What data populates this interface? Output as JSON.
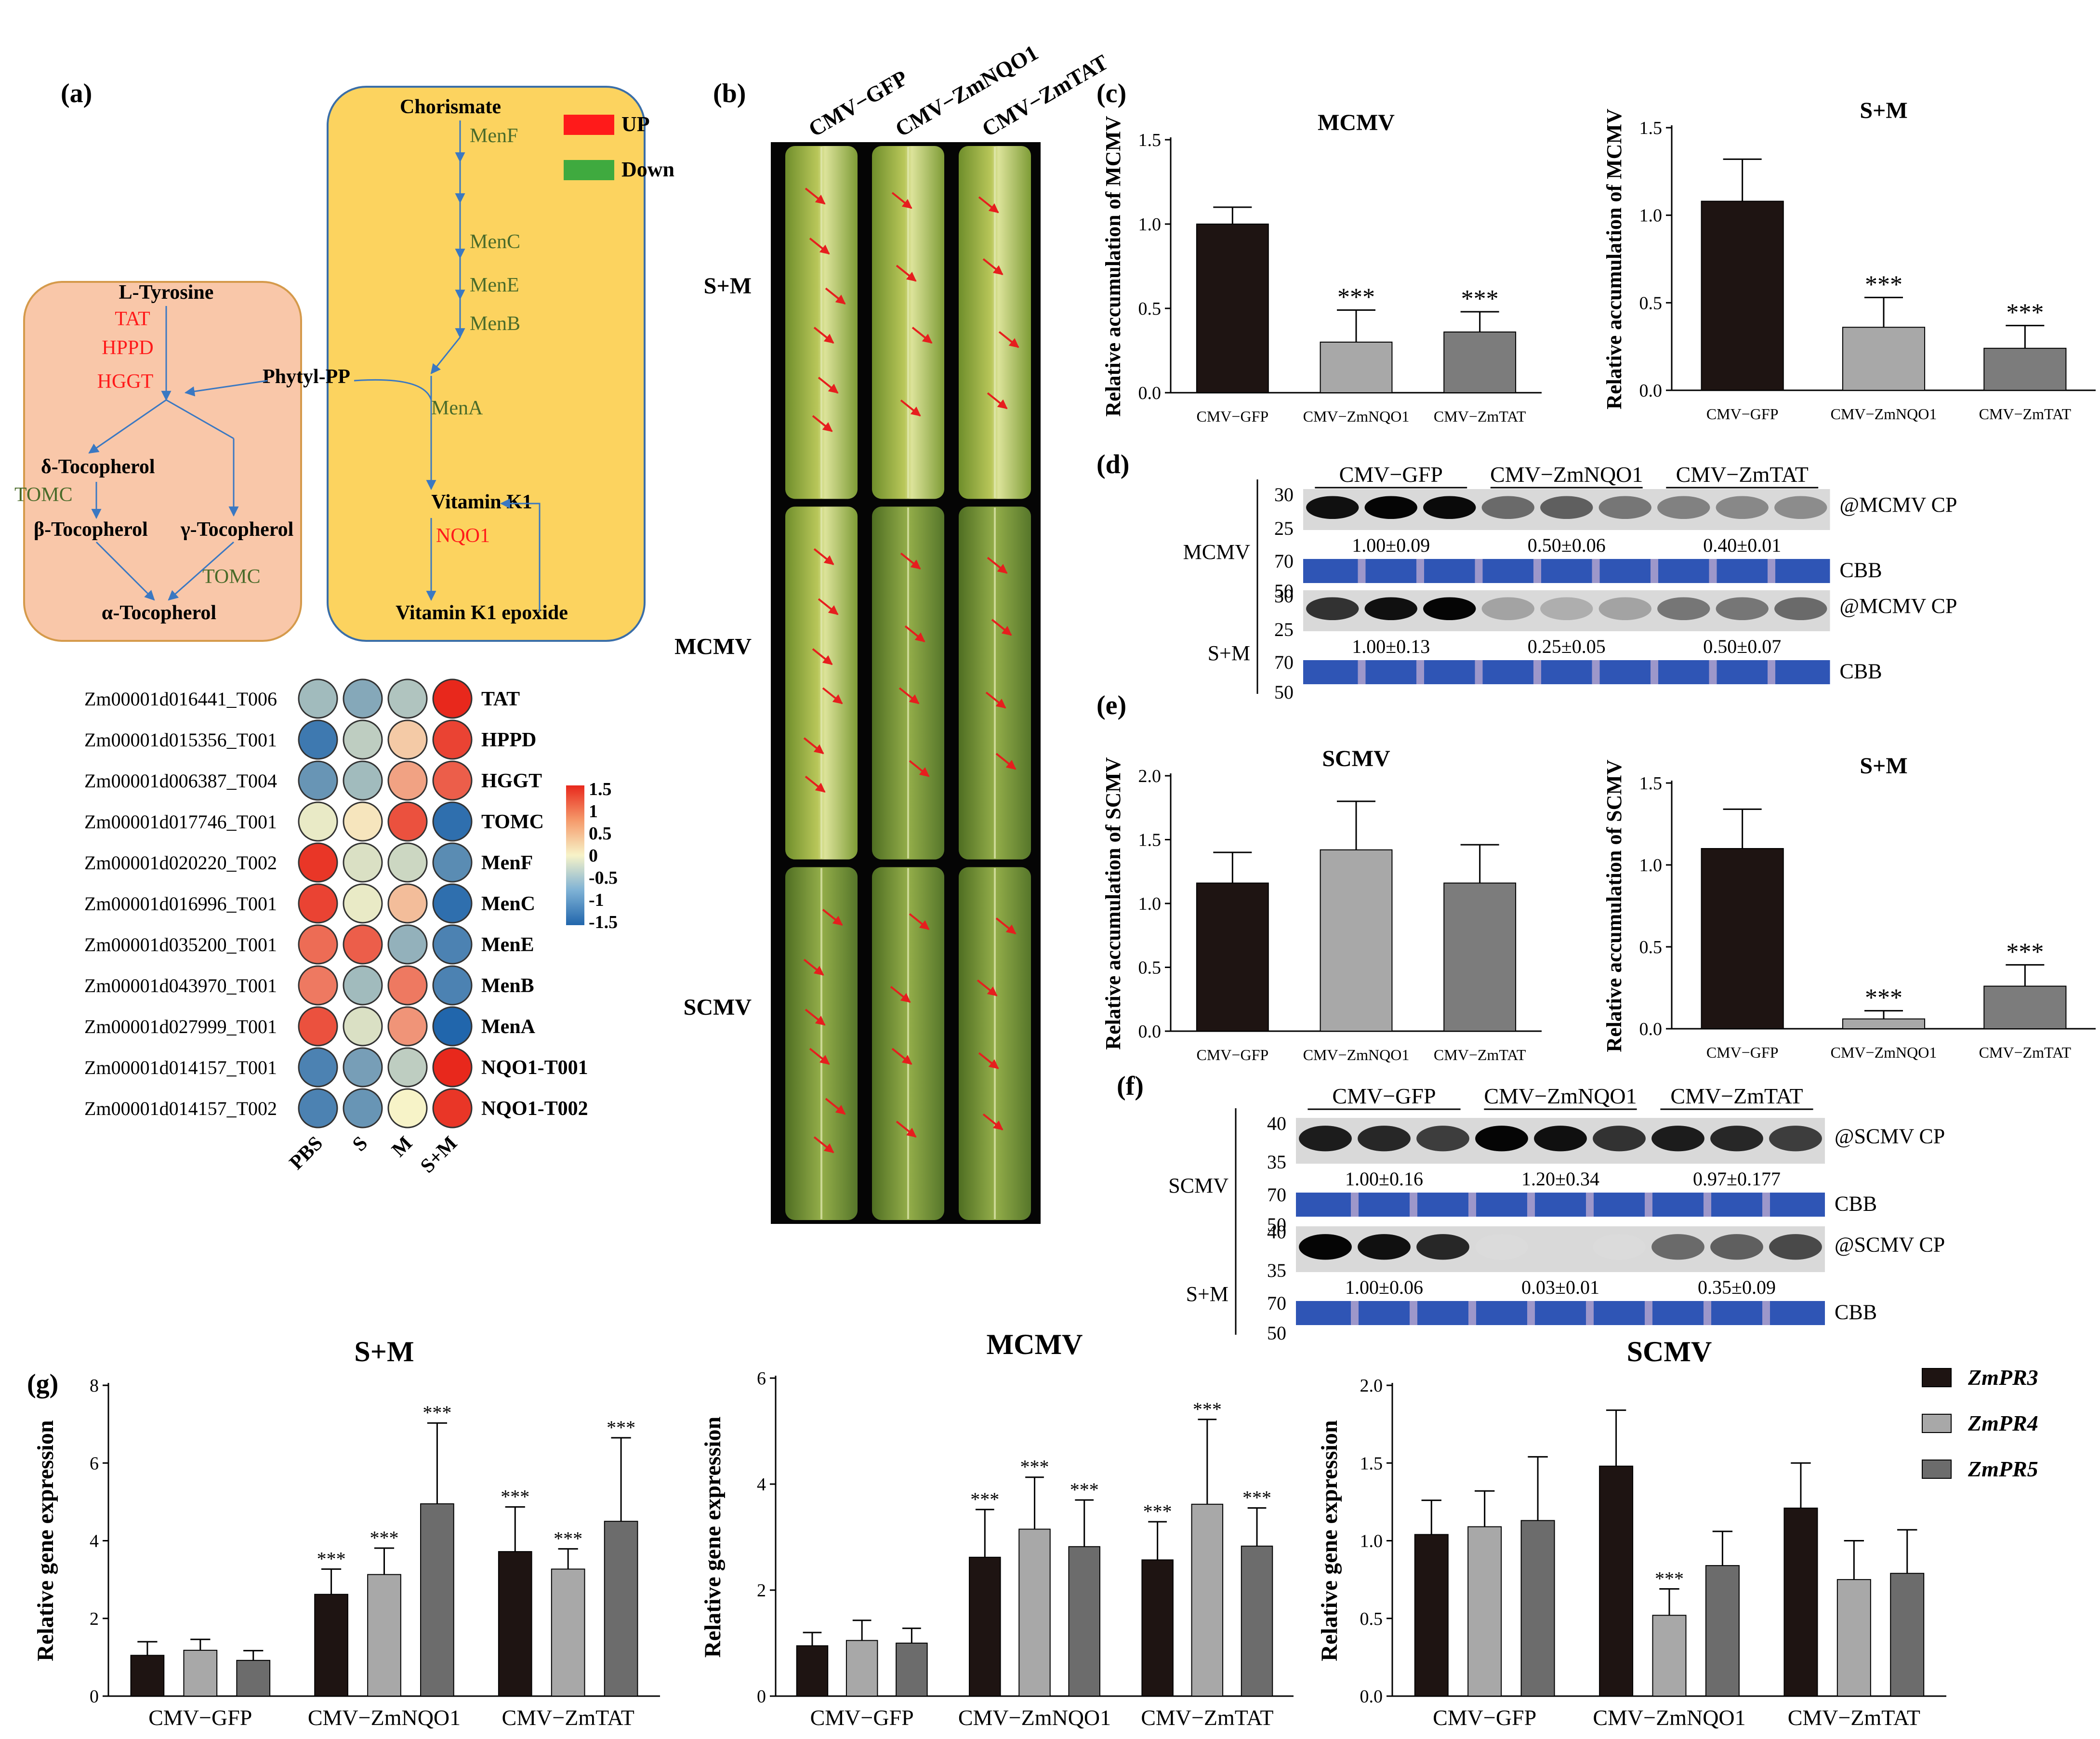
{
  "panels": {
    "a": "(a)",
    "b": "(b)",
    "c": "(c)",
    "d": "(d)",
    "e": "(e)",
    "f": "(f)",
    "g": "(g)"
  },
  "pathway": {
    "left_box": {
      "fill": "#F9C7A9",
      "stroke": "#D59A4B",
      "nodes": [
        "L-Tyrosine",
        "δ-Tocopherol",
        "β-Tocopherol",
        "γ-Tocopherol",
        "α-Tocopherol"
      ],
      "enzymes_up": [
        "TAT",
        "HPPD",
        "HGGT"
      ],
      "enzymes_down": [
        "TOMC",
        "TOMC"
      ]
    },
    "right_box": {
      "fill": "#FCD35F",
      "stroke": "#3A6EA8",
      "nodes": [
        "Chorismate",
        "Vitamin K1",
        "Vitamin K1 epoxide"
      ],
      "enzymes_down": [
        "MenF",
        "MenC",
        "MenE",
        "MenB",
        "MenA"
      ],
      "enzymes_up": [
        "NQO1"
      ]
    },
    "phytyl": "Phytyl-PP",
    "legend": [
      {
        "label": "UP",
        "color": "#FF1A1A"
      },
      {
        "label": "Down",
        "color": "#3FAA3F"
      }
    ],
    "up_text_color": "#FF1A1A",
    "down_text_color": "#4A6B2A",
    "arrow_color": "#3A78C2"
  },
  "heatmap": {
    "rows": [
      {
        "gene": "Zm00001d016441_T006",
        "label": "TAT",
        "values": [
          -0.6,
          -0.8,
          -0.5,
          1.5
        ]
      },
      {
        "gene": "Zm00001d015356_T001",
        "label": "HPPD",
        "values": [
          -1.3,
          -0.4,
          0.3,
          1.3
        ]
      },
      {
        "gene": "Zm00001d006387_T004",
        "label": "HGGT",
        "values": [
          -1.0,
          -0.6,
          0.6,
          1.1
        ]
      },
      {
        "gene": "Zm00001d017746_T001",
        "label": "TOMC",
        "values": [
          -0.1,
          0.1,
          1.2,
          -1.4
        ]
      },
      {
        "gene": "Zm00001d020220_T002",
        "label": "MenF",
        "values": [
          1.4,
          -0.2,
          -0.3,
          -1.1
        ]
      },
      {
        "gene": "Zm00001d016996_T001",
        "label": "MenC",
        "values": [
          1.3,
          -0.1,
          0.4,
          -1.4
        ]
      },
      {
        "gene": "Zm00001d035200_T001",
        "label": "MenE",
        "values": [
          1.0,
          1.1,
          -0.7,
          -1.2
        ]
      },
      {
        "gene": "Zm00001d043970_T001",
        "label": "MenB",
        "values": [
          0.9,
          -0.6,
          0.9,
          -1.2
        ]
      },
      {
        "gene": "Zm00001d027999_T001",
        "label": "MenA",
        "values": [
          1.2,
          -0.2,
          0.7,
          -1.5
        ]
      },
      {
        "gene": "Zm00001d014157_T001",
        "label": "NQO1-T001",
        "values": [
          -1.2,
          -0.9,
          -0.4,
          1.5
        ]
      },
      {
        "gene": "Zm00001d014157_T002",
        "label": "NQO1-T002",
        "values": [
          -1.2,
          -1.0,
          0.0,
          1.4
        ]
      }
    ],
    "columns": [
      "PBS",
      "S",
      "M",
      "S+M"
    ],
    "scale_ticks": [
      "1.5",
      "1",
      "0.5",
      "0",
      "-0.5",
      "-1",
      "-1.5"
    ],
    "color_low": "#2166AC",
    "color_mid": "#F7F3C8",
    "color_high": "#E8281C"
  },
  "leaf_photo": {
    "columns": [
      "CMV−GFP",
      "CMV−ZmNQO1",
      "CMV−ZmTAT"
    ],
    "rows": [
      "S+M",
      "MCMV",
      "SCMV"
    ],
    "arrow_color": "#E61E1E"
  },
  "chart_data": [
    {
      "panel": "c",
      "type": "bar",
      "title": "MCMV",
      "ylabel": "Relative accumulation of MCMV",
      "categories": [
        "CMV−GFP",
        "CMV−ZmNQO1",
        "CMV−ZmTAT"
      ],
      "values": [
        1.0,
        0.3,
        0.36
      ],
      "errors": [
        0.1,
        0.19,
        0.12
      ],
      "significance": [
        "",
        "***",
        "***"
      ],
      "ylim": [
        0,
        1.5
      ],
      "yticks": [
        "0.0",
        "0.5",
        "1.0",
        "1.5"
      ],
      "colors": [
        "#1E1412",
        "#A8A8A8",
        "#7C7C7C"
      ]
    },
    {
      "panel": "c",
      "type": "bar",
      "title": "S+M",
      "ylabel": "Relative accumulation of MCMV",
      "categories": [
        "CMV−GFP",
        "CMV−ZmNQO1",
        "CMV−ZmTAT"
      ],
      "values": [
        1.08,
        0.36,
        0.24
      ],
      "errors": [
        0.24,
        0.17,
        0.13
      ],
      "significance": [
        "",
        "***",
        "***"
      ],
      "ylim": [
        0,
        1.5
      ],
      "yticks": [
        "0.0",
        "0.5",
        "1.0",
        "1.5"
      ],
      "colors": [
        "#1E1412",
        "#A8A8A8",
        "#7C7C7C"
      ]
    },
    {
      "panel": "e",
      "type": "bar",
      "title": "SCMV",
      "ylabel": "Relative accumulation of SCMV",
      "categories": [
        "CMV−GFP",
        "CMV−ZmNQO1",
        "CMV−ZmTAT"
      ],
      "values": [
        1.16,
        1.42,
        1.16
      ],
      "errors": [
        0.24,
        0.38,
        0.3
      ],
      "significance": [
        "",
        "",
        ""
      ],
      "ylim": [
        0,
        2.0
      ],
      "yticks": [
        "0.0",
        "0.5",
        "1.0",
        "1.5",
        "2.0"
      ],
      "colors": [
        "#1E1412",
        "#A8A8A8",
        "#7C7C7C"
      ]
    },
    {
      "panel": "e",
      "type": "bar",
      "title": "S+M",
      "ylabel": "Relative accumulation of SCMV",
      "categories": [
        "CMV−GFP",
        "CMV−ZmNQO1",
        "CMV−ZmTAT"
      ],
      "values": [
        1.1,
        0.06,
        0.26
      ],
      "errors": [
        0.24,
        0.05,
        0.13
      ],
      "significance": [
        "",
        "***",
        "***"
      ],
      "ylim": [
        0,
        1.5
      ],
      "yticks": [
        "0.0",
        "0.5",
        "1.0",
        "1.5"
      ],
      "colors": [
        "#1E1412",
        "#A8A8A8",
        "#7C7C7C"
      ]
    },
    {
      "panel": "g",
      "type": "bar",
      "title": "S+M",
      "ylabel": "Relative gene expression",
      "categories": [
        "CMV−GFP",
        "CMV−ZmNQO1",
        "CMV−ZmTAT"
      ],
      "series": [
        {
          "name": "ZmPR3",
          "values": [
            1.05,
            2.62,
            3.72
          ],
          "errors": [
            0.35,
            0.65,
            1.15
          ],
          "sig": [
            "",
            "***",
            "***"
          ]
        },
        {
          "name": "ZmPR4",
          "values": [
            1.18,
            3.13,
            3.27
          ],
          "errors": [
            0.28,
            0.68,
            0.52
          ],
          "sig": [
            "",
            "***",
            "***"
          ]
        },
        {
          "name": "ZmPR5",
          "values": [
            0.92,
            4.95,
            4.5
          ],
          "errors": [
            0.25,
            2.08,
            2.15
          ],
          "sig": [
            "",
            "***",
            "***"
          ]
        }
      ],
      "ylim": [
        0,
        8
      ],
      "yticks": [
        "0",
        "2",
        "4",
        "6",
        "8"
      ],
      "colors": [
        "#1E1412",
        "#A8A8A8",
        "#6C6C6C"
      ]
    },
    {
      "panel": "g",
      "type": "bar",
      "title": "MCMV",
      "ylabel": "Relative gene expression",
      "categories": [
        "CMV−GFP",
        "CMV−ZmNQO1",
        "CMV−ZmTAT"
      ],
      "series": [
        {
          "name": "ZmPR3",
          "values": [
            0.95,
            2.62,
            2.57
          ],
          "errors": [
            0.25,
            0.9,
            0.72
          ],
          "sig": [
            "",
            "***",
            "***"
          ]
        },
        {
          "name": "ZmPR4",
          "values": [
            1.05,
            3.15,
            3.62
          ],
          "errors": [
            0.38,
            0.98,
            1.6
          ],
          "sig": [
            "",
            "***",
            "***"
          ]
        },
        {
          "name": "ZmPR5",
          "values": [
            1.0,
            2.82,
            2.83
          ],
          "errors": [
            0.28,
            0.88,
            0.72
          ],
          "sig": [
            "",
            "***",
            "***"
          ]
        }
      ],
      "ylim": [
        0,
        6
      ],
      "yticks": [
        "0",
        "2",
        "4",
        "6"
      ],
      "colors": [
        "#1E1412",
        "#A8A8A8",
        "#6C6C6C"
      ]
    },
    {
      "panel": "g",
      "type": "bar",
      "title": "SCMV",
      "ylabel": "Relative gene expression",
      "categories": [
        "CMV−GFP",
        "CMV−ZmNQO1",
        "CMV−ZmTAT"
      ],
      "series": [
        {
          "name": "ZmPR3",
          "values": [
            1.04,
            1.48,
            1.21
          ],
          "errors": [
            0.22,
            0.36,
            0.29
          ],
          "sig": [
            "",
            "",
            ""
          ]
        },
        {
          "name": "ZmPR4",
          "values": [
            1.09,
            0.52,
            0.75
          ],
          "errors": [
            0.23,
            0.17,
            0.25
          ],
          "sig": [
            "",
            "***",
            ""
          ]
        },
        {
          "name": "ZmPR5",
          "values": [
            1.13,
            0.84,
            0.79
          ],
          "errors": [
            0.41,
            0.22,
            0.28
          ],
          "sig": [
            "",
            "",
            ""
          ]
        }
      ],
      "ylim": [
        0,
        2.0
      ],
      "yticks": [
        "0.0",
        "0.5",
        "1.0",
        "1.5",
        "2.0"
      ],
      "colors": [
        "#1E1412",
        "#A8A8A8",
        "#6C6C6C"
      ]
    }
  ],
  "western_d": {
    "groups": [
      "CMV−GFP",
      "CMV−ZmNQO1",
      "CMV−ZmTAT"
    ],
    "blots": [
      {
        "row": "MCMV",
        "antibody": "@MCMV CP",
        "markers_top": [
          "30",
          "25"
        ],
        "markers_cbb": [
          "70",
          "50"
        ],
        "quant": [
          "1.00±0.09",
          "0.50±0.06",
          "0.40±0.01"
        ],
        "intensity": [
          0.95,
          1.0,
          0.98,
          0.55,
          0.6,
          0.5,
          0.45,
          0.42,
          0.4
        ]
      },
      {
        "row": "S+M",
        "antibody": "@MCMV CP",
        "markers_top": [
          "30",
          "25"
        ],
        "markers_cbb": [
          "70",
          "50"
        ],
        "quant": [
          "1.00±0.13",
          "0.25±0.05",
          "0.50±0.07"
        ],
        "intensity": [
          0.8,
          0.95,
          1.0,
          0.3,
          0.25,
          0.3,
          0.5,
          0.5,
          0.55
        ]
      }
    ],
    "cbb_label": "CBB"
  },
  "western_f": {
    "groups": [
      "CMV−GFP",
      "CMV−ZmNQO1",
      "CMV−ZmTAT"
    ],
    "blots": [
      {
        "row": "SCMV",
        "antibody": "@SCMV CP",
        "markers_top": [
          "40",
          "35"
        ],
        "markers_cbb": [
          "70",
          "50"
        ],
        "quant": [
          "1.00±0.16",
          "1.20±0.34",
          "0.97±0.177"
        ],
        "intensity": [
          0.9,
          0.85,
          0.75,
          1.0,
          0.95,
          0.8,
          0.9,
          0.85,
          0.75
        ]
      },
      {
        "row": "S+M",
        "antibody": "@SCMV CP",
        "markers_top": [
          "40",
          "35"
        ],
        "markers_cbb": [
          "70",
          "50"
        ],
        "quant": [
          "1.00±0.06",
          "0.03±0.01",
          "0.35±0.09"
        ],
        "intensity": [
          1.0,
          0.95,
          0.85,
          0.05,
          0.06,
          0.05,
          0.55,
          0.6,
          0.7
        ]
      }
    ],
    "cbb_label": "CBB"
  }
}
